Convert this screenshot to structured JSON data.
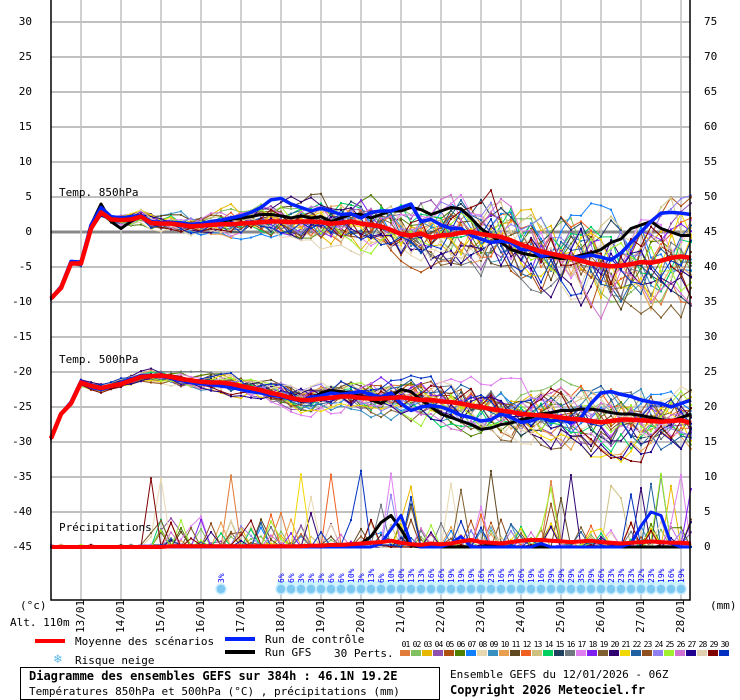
{
  "chart_data": {
    "type": "line",
    "title": "Diagramme des ensembles GEFS sur 384h : 46.1N 19.2E",
    "subtitle": "Températures 850hPa et 500hPa (°C) , précipitations (mm)",
    "run_info": "Ensemble GEFS du 12/01/2026 - 06Z",
    "copyright": "Copyright 2026 Meteociel.fr",
    "altitude": "Alt. 110m",
    "ylabel_left": "(°c)",
    "ylabel_right": "(mm)",
    "ylim_left": [
      -45,
      30
    ],
    "ylim_right": [
      0,
      75
    ],
    "yticks_left": [
      "30",
      "25",
      "20",
      "15",
      "10",
      "5",
      "0",
      "-5",
      "-10",
      "-15",
      "-20",
      "-25",
      "-30",
      "-35",
      "-40",
      "-45"
    ],
    "yticks_right": [
      "75",
      "70",
      "65",
      "60",
      "55",
      "50",
      "45",
      "40",
      "35",
      "30",
      "25",
      "20",
      "15",
      "10",
      "5",
      "0"
    ],
    "x_step_hours": 6,
    "x_ticks": [
      "13/01",
      "14/01",
      "15/01",
      "16/01",
      "17/01",
      "18/01",
      "19/01",
      "20/01",
      "21/01",
      "22/01",
      "23/01",
      "24/01",
      "25/01",
      "26/01",
      "27/01",
      "28/01"
    ],
    "panel_labels": {
      "t850": "Temp. 850hPa",
      "t500": "Temp. 500hPa",
      "precip": "Précipitations"
    },
    "grid": true,
    "legend": {
      "mean": "Moyenne des scénarios",
      "control": "Run de contrôle",
      "gfs": "Run GFS",
      "snow": "Risque neige",
      "perts": "30 Perts."
    },
    "colors": {
      "mean": "#ff0000",
      "control": "#0022ff",
      "gfs": "#000000",
      "perts": [
        "#e07b39",
        "#80c060",
        "#e8b800",
        "#9050b0",
        "#b05010",
        "#508000",
        "#1080ff",
        "#e8d8b0",
        "#3890c0",
        "#e8a050",
        "#604820",
        "#f06020",
        "#d0c080",
        "#00d060",
        "#204060",
        "#707880",
        "#e080f0",
        "#8020f0",
        "#806030",
        "#300070",
        "#f0d800",
        "#2060a0",
        "#905020",
        "#9080f0",
        "#a0f030",
        "#d070d0",
        "#200090",
        "#e0d0b0",
        "#800000",
        "#0030c0"
      ]
    },
    "pert_labels": [
      "01",
      "02",
      "03",
      "04",
      "05",
      "06",
      "07",
      "08",
      "09",
      "10",
      "11",
      "12",
      "13",
      "14",
      "15",
      "16",
      "17",
      "18",
      "19",
      "20",
      "21",
      "22",
      "23",
      "24",
      "25",
      "26",
      "27",
      "28",
      "29",
      "30"
    ],
    "ensemble_spread": {
      "t850_start": 0.4,
      "t850_end": 5.0,
      "t500_start": 0.4,
      "t500_end": 3.2
    },
    "series": [
      {
        "name": "t850_mean",
        "values": [
          -9.5,
          -8,
          -4.5,
          -4.5,
          0.5,
          2.8,
          1.8,
          1.7,
          1.8,
          2.2,
          1.3,
          1.2,
          1.2,
          1.0,
          0.8,
          0.9,
          1.0,
          1.1,
          1.1,
          1.2,
          1.3,
          1.4,
          1.5,
          1.5,
          1.4,
          1.5,
          1.5,
          1.4,
          1.2,
          1.3,
          1.5,
          1.2,
          1.0,
          0.8,
          0.3,
          -0.3,
          -0.5,
          -0.2,
          -0.8,
          -0.5,
          -0.4,
          -0.1,
          0,
          -0.3,
          -0.5,
          -0.7,
          -1.2,
          -1.8,
          -2.3,
          -2.8,
          -3.1,
          -3.4,
          -3.7,
          -4.1,
          -4.5,
          -4.7,
          -4.9,
          -4.8,
          -4.6,
          -4.3,
          -4.4,
          -4.1,
          -3.7,
          -3.5,
          -3.7
        ]
      },
      {
        "name": "t850_control",
        "values": [
          -9.5,
          -7.8,
          -4.2,
          -4.3,
          1.0,
          3.5,
          2.2,
          2.0,
          2.2,
          2.4,
          1.5,
          1.4,
          1.4,
          1.3,
          1.1,
          1.2,
          1.5,
          1.7,
          2.0,
          2.3,
          2.8,
          3.5,
          4.6,
          4.8,
          4.0,
          3.5,
          3.0,
          3.4,
          3.0,
          2.5,
          2.6,
          2.0,
          2.8,
          3.0,
          3.0,
          3.5,
          4.0,
          1.5,
          1.8,
          1.0,
          0.5,
          0.5,
          -0.5,
          -1.0,
          -1.5,
          -1.3,
          -1.5,
          -2.5,
          -2.5,
          -3.5,
          -3.2,
          -3.3,
          -3.6,
          -3.6,
          -3.3,
          -3.6,
          -4.0,
          -3.0,
          -1.5,
          0,
          1.5,
          2.7,
          2.8,
          2.7,
          2.5
        ]
      },
      {
        "name": "t850_gfs",
        "values": [
          -9.5,
          -8,
          -4.4,
          -4.4,
          1.0,
          4.0,
          1.5,
          0.5,
          1.5,
          2.3,
          1.5,
          1.4,
          1.3,
          1.2,
          1.0,
          1.2,
          1.4,
          1.5,
          1.8,
          2.0,
          2.2,
          2.5,
          2.5,
          2.3,
          2.0,
          2.3,
          2.0,
          2.2,
          1.5,
          2.0,
          2.5,
          2.5,
          2.0,
          2.5,
          3.0,
          3.0,
          3.5,
          3.2,
          2.5,
          3.0,
          3.5,
          3.3,
          2.0,
          0.5,
          -0.5,
          -1.5,
          -2.5,
          -3.0,
          -3.3,
          -3.5,
          -3.5,
          -3.8,
          -3.7,
          -3.3,
          -3.0,
          -2.5,
          -1.5,
          -1.0,
          0.5,
          1.0,
          1.5,
          0.5,
          0.0,
          -0.5,
          -0.5
        ]
      },
      {
        "name": "t500_mean",
        "values": [
          -29.5,
          -26,
          -24.5,
          -21.5,
          -22,
          -22.3,
          -22,
          -21.7,
          -21.2,
          -20.7,
          -20.6,
          -20.5,
          -20.7,
          -21.0,
          -21.2,
          -21.4,
          -21.5,
          -21.5,
          -21.7,
          -22.0,
          -22.3,
          -22.6,
          -23.0,
          -23.3,
          -23.7,
          -24.0,
          -24.0,
          -23.8,
          -23.7,
          -23.5,
          -23.5,
          -23.7,
          -23.8,
          -23.8,
          -23.7,
          -23.6,
          -23.8,
          -24.0,
          -24.0,
          -24.2,
          -24.3,
          -24.5,
          -24.8,
          -25.0,
          -25.3,
          -25.5,
          -25.7,
          -26.0,
          -26.1,
          -26.2,
          -26.3,
          -26.5,
          -26.7,
          -26.8,
          -27.0,
          -27.2,
          -27.0,
          -26.8,
          -26.8,
          -26.9,
          -27.0,
          -27.1,
          -27.0,
          -26.9,
          -27.3
        ]
      },
      {
        "name": "t500_control",
        "values": [
          -29.5,
          -26,
          -24.3,
          -21.3,
          -22.2,
          -22.5,
          -22.1,
          -21.5,
          -21.0,
          -20.5,
          -20.5,
          -20.6,
          -20.9,
          -21.2,
          -21.5,
          -21.7,
          -21.8,
          -22.0,
          -22.2,
          -22.5,
          -22.8,
          -23.0,
          -23.3,
          -23.5,
          -23.9,
          -24.1,
          -23.6,
          -23.4,
          -23.0,
          -23.2,
          -23.0,
          -22.8,
          -23.2,
          -23.6,
          -23.0,
          -24.5,
          -25.5,
          -25.0,
          -24.8,
          -25.0,
          -25.5,
          -26.2,
          -26.5,
          -27.0,
          -26.8,
          -26.0,
          -26.5,
          -27.2,
          -27.0,
          -26.5,
          -27.0,
          -26.8,
          -27.2,
          -26.5,
          -24.5,
          -23.0,
          -22.8,
          -23.2,
          -23.5,
          -24.0,
          -24.3,
          -24.5,
          -25.0,
          -24.5,
          -24.0
        ]
      },
      {
        "name": "t500_gfs",
        "values": [
          -29.5,
          -26,
          -24.4,
          -21.4,
          -22.0,
          -22.4,
          -22.2,
          -21.7,
          -21.1,
          -20.6,
          -20.5,
          -20.6,
          -20.8,
          -21.0,
          -21.3,
          -21.5,
          -21.6,
          -21.7,
          -22.0,
          -22.3,
          -22.5,
          -22.8,
          -23.2,
          -23.5,
          -23.8,
          -24.2,
          -23.8,
          -23.0,
          -22.6,
          -22.8,
          -23.0,
          -23.5,
          -24.0,
          -24.5,
          -23.5,
          -22.5,
          -22.8,
          -24.0,
          -25.0,
          -26.0,
          -26.5,
          -27.0,
          -27.5,
          -28.2,
          -28.0,
          -27.5,
          -27.3,
          -26.8,
          -26.5,
          -26.0,
          -25.8,
          -25.5,
          -25.5,
          -25.3,
          -25.3,
          -25.5,
          -25.8,
          -26.0,
          -26.0,
          -26.2,
          -26.5,
          -26.8,
          -27.0,
          -26.5,
          -26.0
        ]
      },
      {
        "name": "precip_mean",
        "values": [
          0,
          0,
          0,
          0,
          0,
          0,
          0,
          0,
          0,
          0,
          0,
          0,
          0.1,
          0.1,
          0.1,
          0.1,
          0.1,
          0.1,
          0.1,
          0.1,
          0.1,
          0.1,
          0.1,
          0.1,
          0.1,
          0.1,
          0.2,
          0.2,
          0.3,
          0.3,
          0.4,
          0.5,
          0.6,
          0.7,
          0.9,
          0.6,
          0.4,
          0.3,
          0.5,
          0.4,
          0.5,
          0.8,
          1.0,
          0.7,
          0.6,
          0.5,
          0.7,
          0.9,
          1.0,
          1.0,
          0.9,
          0.8,
          0.7,
          0.8,
          0.9,
          0.7,
          0.6,
          0.5,
          0.6,
          0.7,
          0.8,
          0.7,
          0.6,
          0.6,
          0.5
        ]
      },
      {
        "name": "precip_control",
        "values": [
          0,
          0,
          0,
          0,
          0,
          0,
          0,
          0,
          0,
          0,
          0,
          0,
          0,
          0,
          0,
          0,
          0,
          0,
          0,
          0,
          0,
          0,
          0,
          0,
          0,
          0,
          0,
          0,
          0,
          0,
          0,
          0,
          0,
          0.5,
          2.5,
          4.5,
          0.5,
          0,
          0,
          0,
          0.5,
          1.5,
          0,
          0,
          0,
          0,
          0,
          0,
          0,
          0.5,
          0,
          0,
          0,
          0,
          0,
          0,
          0,
          0,
          0.5,
          3.0,
          5.0,
          4.5,
          0.5,
          0,
          0
        ]
      },
      {
        "name": "precip_gfs",
        "values": [
          0,
          0,
          0,
          0,
          0,
          0,
          0,
          0,
          0,
          0,
          0,
          0,
          0,
          0,
          0,
          0,
          0,
          0,
          0,
          0,
          0,
          0,
          0,
          0,
          0,
          0,
          0,
          0,
          0,
          0,
          0,
          0.5,
          1.5,
          3.5,
          4.5,
          2.5,
          0.2,
          0,
          0,
          0,
          0,
          0,
          0,
          0,
          0.5,
          0,
          0,
          0,
          0,
          0,
          0,
          0,
          0,
          0,
          0,
          0,
          0,
          0,
          0,
          0,
          0,
          0,
          0,
          0,
          0
        ]
      }
    ],
    "snow_risk": {
      "first": {
        "label": "3%",
        "date_index": 17
      },
      "labels": [
        "6%",
        "6%",
        "3%",
        "3%",
        "3%",
        "6%",
        "6%",
        "10%",
        "3%",
        "13%",
        "6%",
        "10%",
        "10%",
        "13%",
        "13%",
        "16%",
        "16%",
        "19%",
        "19%",
        "19%",
        "16%",
        "23%",
        "16%",
        "13%",
        "26%",
        "19%",
        "16%",
        "29%",
        "29%",
        "29%",
        "35%",
        "29%",
        "26%",
        "23%",
        "23%",
        "23%",
        "32%",
        "23%",
        "19%",
        "16%",
        "19%"
      ]
    }
  }
}
